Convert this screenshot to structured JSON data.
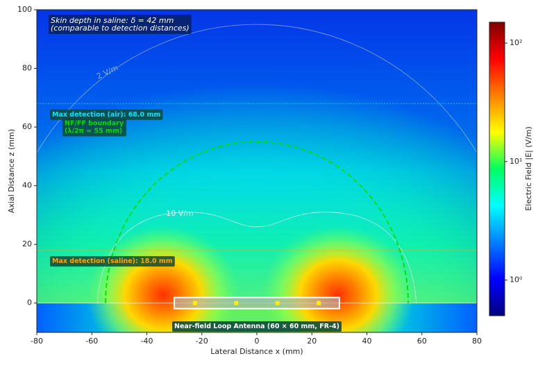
{
  "chart_data": {
    "type": "heatmap",
    "xlabel": "Lateral Distance x (mm)",
    "ylabel": "Axial Distance z (mm)",
    "xlim": [
      -80,
      80
    ],
    "ylim": [
      -10,
      100
    ],
    "xticks": [
      -80,
      -60,
      -40,
      -20,
      0,
      20,
      40,
      60,
      80
    ],
    "yticks": [
      0,
      20,
      40,
      60,
      80,
      100
    ],
    "colorbar": {
      "label": "Electric Field |E| (V/m)",
      "scale": "log",
      "colormap": "jet",
      "lim": [
        0.5,
        150
      ],
      "ticks": [
        {
          "value": 1,
          "label": "10⁰"
        },
        {
          "value": 10,
          "label": "10¹"
        },
        {
          "value": 100,
          "label": "10²"
        }
      ]
    },
    "note": [
      "Skin depth in saline: δ = 42 mm",
      "(comparable to detection distances)"
    ],
    "reference_lines": [
      {
        "label": "Max detection (air): 68.0 mm",
        "y": 68,
        "color": "#00e5ff"
      },
      {
        "label": "Max detection (saline): 18.0 mm",
        "y": 18,
        "color": "#ffa500"
      }
    ],
    "boundary": {
      "label": [
        "NF/FF boundary",
        "(λ/2π ≈ 55 mm)"
      ],
      "radius": 55,
      "color": "#00dd00"
    },
    "contours": [
      {
        "value": 2,
        "label": "2 V/m"
      },
      {
        "value": 10,
        "label": "10 V/m"
      }
    ],
    "antenna": {
      "label": "Near-field Loop Antenna (60 × 60 mm, FR-4)",
      "x": [
        -30,
        30
      ],
      "feeds": [
        -22.5,
        -7.5,
        7.5,
        22.5
      ]
    }
  }
}
